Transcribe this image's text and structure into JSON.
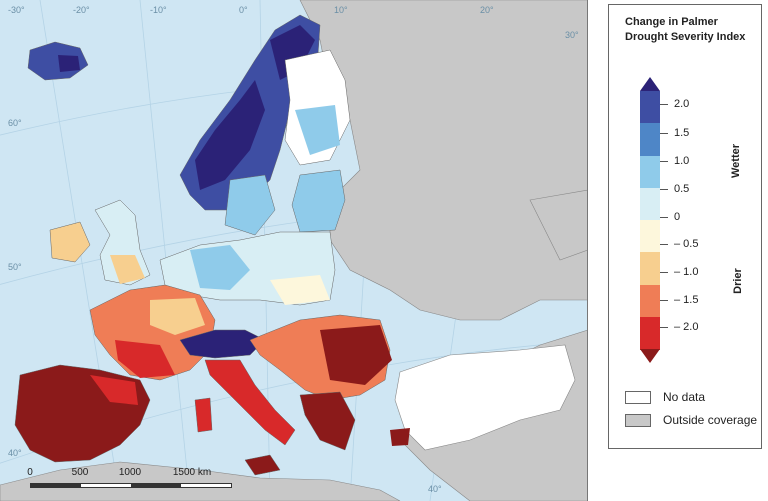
{
  "legend": {
    "title": "Change in Palmer Drought Severity Index",
    "wetter_label": "Wetter",
    "drier_label": "Drier",
    "ticks": [
      "2.0",
      "1.5",
      "1.0",
      "0.5",
      "0",
      "– 0.5",
      "– 1.0",
      "– 1.5",
      "– 2.0"
    ],
    "ramp_colors": [
      "#2b2277",
      "#3e4ea3",
      "#4e86c7",
      "#8fcbea",
      "#d8eef4",
      "#fdf7dc",
      "#f7cf8f",
      "#ef7d56",
      "#d8292a",
      "#8b1a1a"
    ],
    "no_data_label": "No data",
    "outside_label": "Outside coverage",
    "no_data_color": "#ffffff",
    "outside_color": "#c8c8c8"
  },
  "scale": {
    "ticks": [
      "0",
      "500",
      "1000",
      "1500 km"
    ]
  },
  "graticule_labels": [
    "-30°",
    "-20°",
    "-10°",
    "0°",
    "10°",
    "20°",
    "30°",
    "40°",
    "60°",
    "50°",
    "40°"
  ],
  "map_colors": {
    "sea": "#cfe6f3",
    "outside": "#c8c8c8",
    "no_data": "#ffffff"
  }
}
